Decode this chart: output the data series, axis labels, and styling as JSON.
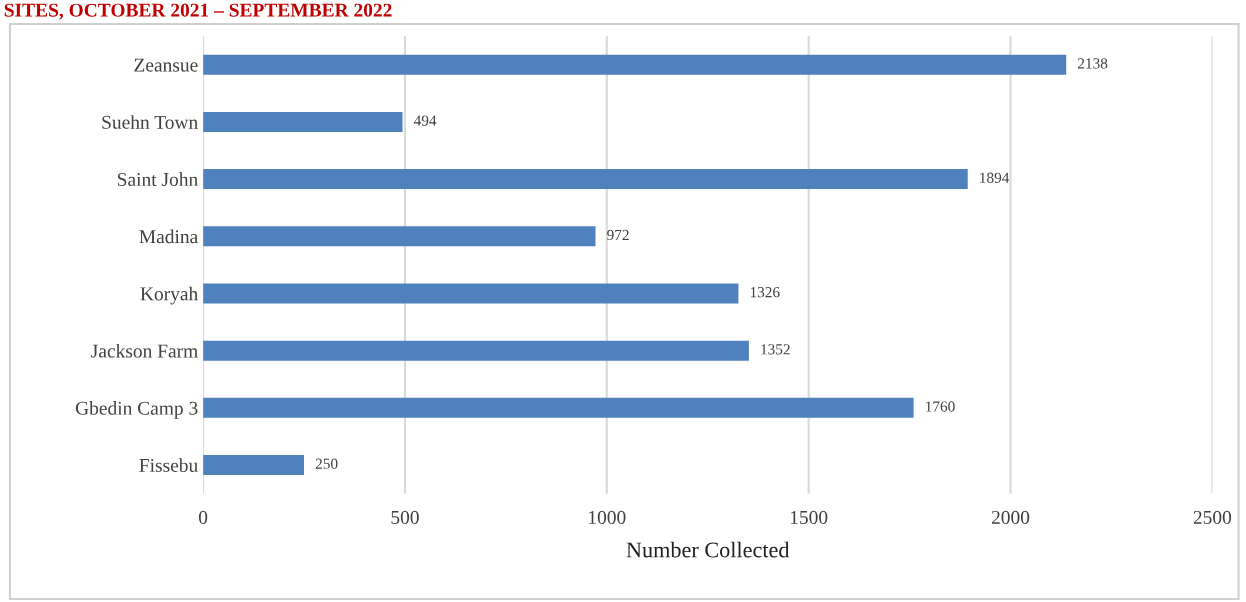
{
  "chart_data": {
    "type": "bar",
    "orientation": "horizontal",
    "title": "SITES, OCTOBER 2021 – SEPTEMBER 2022",
    "xlabel": "Number Collected",
    "categories": [
      "Zeansue",
      "Suehn Town",
      "Saint John",
      "Madina",
      "Koryah",
      "Jackson Farm",
      "Gbedin Camp 3",
      "Fissebu"
    ],
    "values": [
      2138,
      494,
      1894,
      972,
      1326,
      1352,
      1760,
      250
    ],
    "color": "#4f81bd",
    "xlim": [
      0,
      2500
    ],
    "xticks": [
      0,
      500,
      1000,
      1500,
      2000,
      2500
    ],
    "grid": "x",
    "data_labels": true
  }
}
